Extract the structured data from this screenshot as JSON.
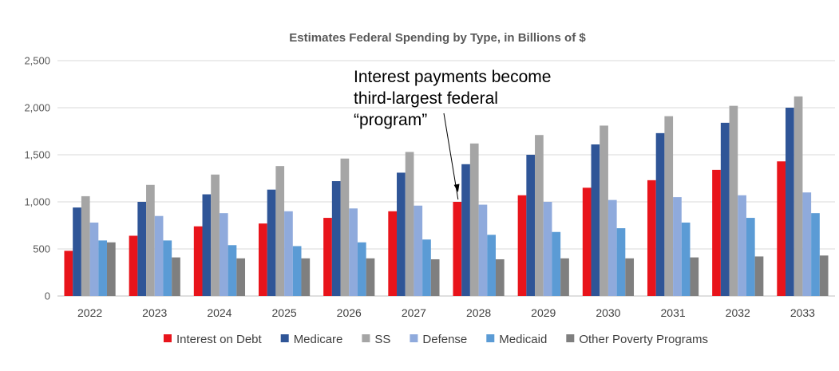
{
  "chart_data": {
    "type": "bar",
    "title": "Estimates Federal Spending by Type, in Billions of $",
    "xlabel": "",
    "ylabel": "",
    "ylim": [
      0,
      2500
    ],
    "yticks": [
      0,
      500,
      1000,
      1500,
      2000,
      2500
    ],
    "ytick_labels": [
      "0",
      "500",
      "1,000",
      "1,500",
      "2,000",
      "2,500"
    ],
    "grid": true,
    "legend_position": "bottom",
    "categories": [
      "2022",
      "2023",
      "2024",
      "2025",
      "2026",
      "2027",
      "2028",
      "2029",
      "2030",
      "2031",
      "2032",
      "2033"
    ],
    "series": [
      {
        "name": "Interest on Debt",
        "color": "#e8141b",
        "values": [
          480,
          640,
          740,
          770,
          830,
          900,
          1000,
          1070,
          1150,
          1230,
          1340,
          1430
        ]
      },
      {
        "name": "Medicare",
        "color": "#2f5597",
        "values": [
          940,
          1000,
          1080,
          1130,
          1220,
          1310,
          1400,
          1500,
          1610,
          1730,
          1840,
          2000
        ]
      },
      {
        "name": "SS",
        "color": "#a5a5a5",
        "values": [
          1060,
          1180,
          1290,
          1380,
          1460,
          1530,
          1620,
          1710,
          1810,
          1910,
          2020,
          2120
        ]
      },
      {
        "name": "Defense",
        "color": "#8faadc",
        "values": [
          780,
          850,
          880,
          900,
          930,
          960,
          970,
          1000,
          1020,
          1050,
          1070,
          1100
        ]
      },
      {
        "name": "Medicaid",
        "color": "#5b9bd5",
        "values": [
          590,
          590,
          540,
          530,
          570,
          600,
          650,
          680,
          720,
          780,
          830,
          880
        ]
      },
      {
        "name": "Other Poverty Programs",
        "color": "#7f7f7f",
        "values": [
          570,
          410,
          400,
          400,
          400,
          390,
          390,
          400,
          400,
          410,
          420,
          430
        ]
      }
    ],
    "annotation": {
      "lines": [
        "Interest payments become",
        "third-largest federal",
        "“program”"
      ],
      "points_to_category": "2028"
    }
  }
}
